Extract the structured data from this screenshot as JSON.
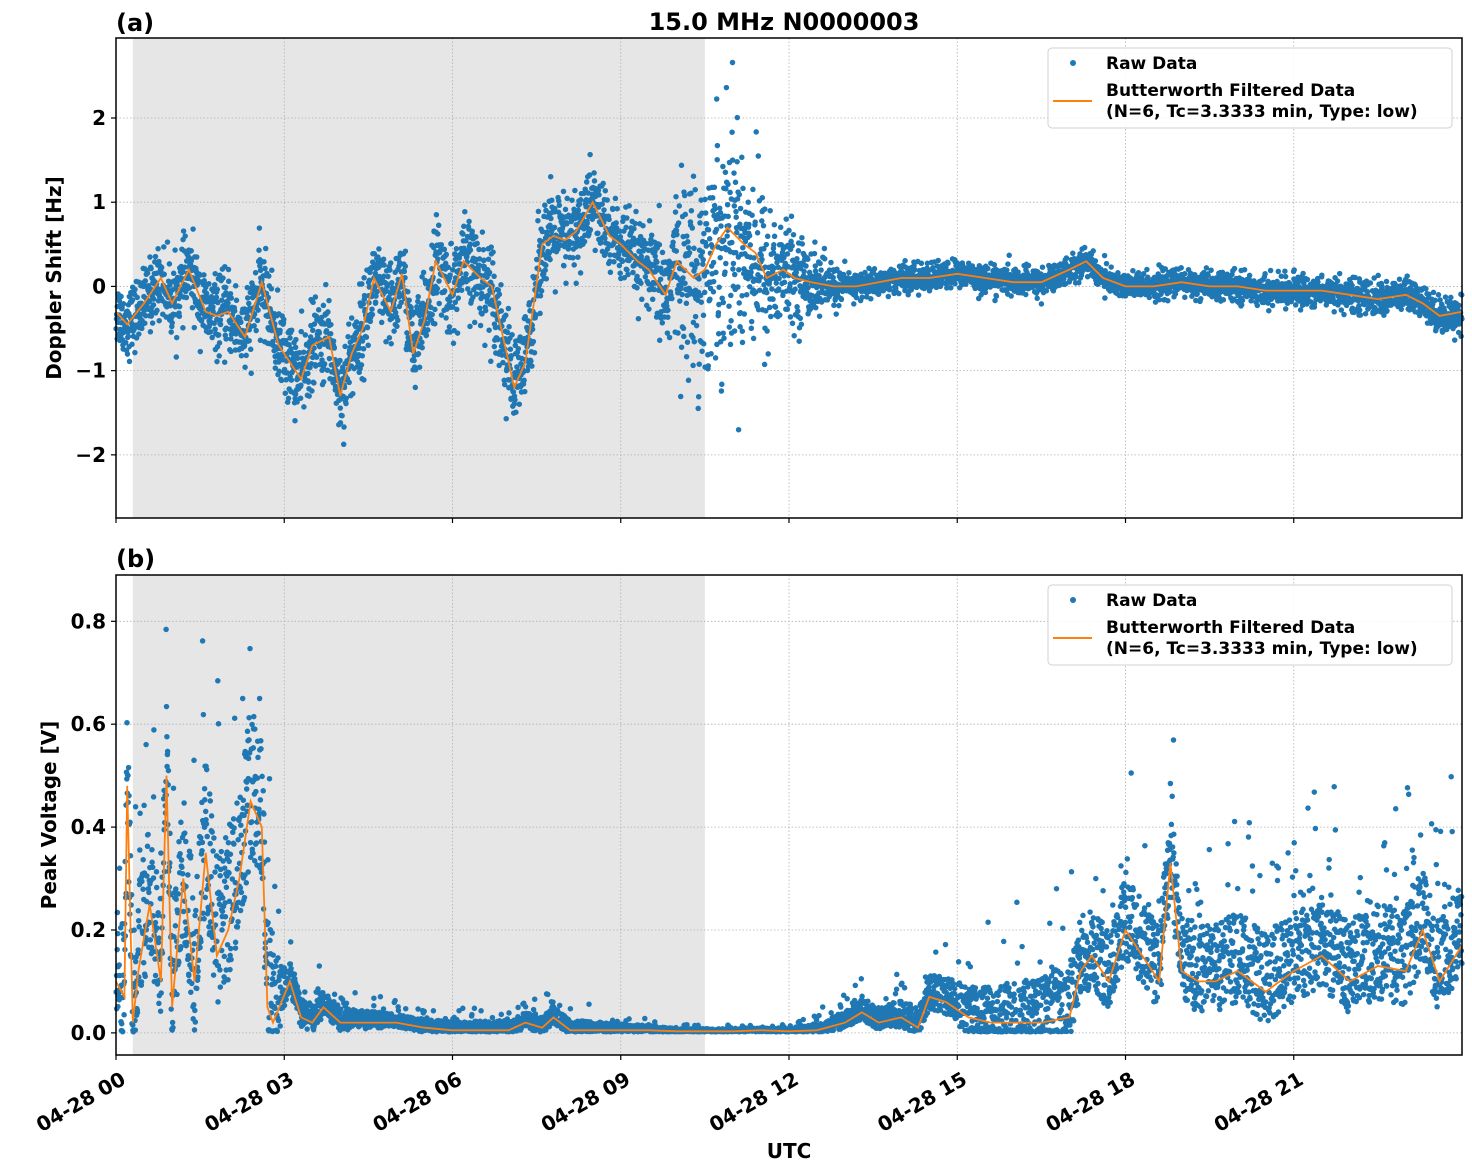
{
  "figure_title": "15.0 MHz N0000003",
  "colors": {
    "raw": "#1f77b4",
    "filtered": "#ff7f0e",
    "shade": "#e6e6e6",
    "grid": "#b0b0b0"
  },
  "legend": {
    "raw_label": "Raw Data",
    "filtered_label_line1": "Butterworth Filtered Data",
    "filtered_label_line2": "(N=6, Tc=3.3333 min, Type: low)"
  },
  "chart_data": [
    {
      "type": "scatter",
      "panel_label": "(a)",
      "title": "15.0 MHz N0000003",
      "xlabel": "",
      "ylabel": "Doppler Shift [Hz]",
      "xlim_hours": [
        0,
        24
      ],
      "ylim": [
        -2.75,
        2.95
      ],
      "yticks": [
        -2,
        -1,
        0,
        1,
        2
      ],
      "ytick_labels": [
        "−2",
        "−1",
        "0",
        "1",
        "2"
      ],
      "grid": true,
      "legend_position": "top-right",
      "shaded_interval_hours": [
        0.3,
        10.5
      ],
      "series": [
        {
          "name": "Butterworth Filtered Data (N=6, Tc=3.3333 min, Type: low)",
          "kind": "line",
          "x_hours": [
            0,
            0.2,
            0.5,
            0.8,
            1.0,
            1.3,
            1.6,
            1.8,
            2.0,
            2.3,
            2.6,
            2.9,
            3.1,
            3.3,
            3.5,
            3.8,
            4.0,
            4.2,
            4.4,
            4.6,
            4.9,
            5.1,
            5.3,
            5.5,
            5.7,
            6.0,
            6.2,
            6.5,
            6.7,
            6.9,
            7.1,
            7.3,
            7.6,
            7.8,
            8.0,
            8.2,
            8.5,
            8.8,
            9.0,
            9.3,
            9.5,
            9.8,
            10.0,
            10.3,
            10.5,
            10.7,
            10.9,
            11.2,
            11.4,
            11.6,
            11.9,
            12.1,
            12.4,
            12.8,
            13.2,
            13.6,
            14.0,
            14.5,
            15.0,
            15.5,
            16.0,
            16.5,
            17.0,
            17.3,
            17.6,
            18.0,
            18.5,
            19.0,
            19.5,
            20.0,
            20.5,
            21.0,
            21.5,
            22.0,
            22.5,
            23.0,
            23.3,
            23.6,
            24.0
          ],
          "y": [
            -0.3,
            -0.45,
            -0.2,
            0.1,
            -0.2,
            0.2,
            -0.3,
            -0.35,
            -0.3,
            -0.6,
            0.05,
            -0.7,
            -0.9,
            -1.1,
            -0.7,
            -0.6,
            -1.3,
            -0.8,
            -0.5,
            0.1,
            -0.3,
            0.15,
            -0.8,
            -0.4,
            0.3,
            -0.1,
            0.3,
            0.1,
            0.0,
            -0.6,
            -1.2,
            -0.9,
            0.5,
            0.6,
            0.55,
            0.65,
            1.0,
            0.6,
            0.5,
            0.3,
            0.2,
            -0.1,
            0.3,
            0.1,
            0.2,
            0.5,
            0.7,
            0.5,
            0.4,
            0.1,
            0.2,
            0.1,
            0.05,
            0.0,
            0.0,
            0.05,
            0.1,
            0.1,
            0.15,
            0.1,
            0.05,
            0.05,
            0.2,
            0.3,
            0.1,
            0.0,
            0.0,
            0.05,
            0.0,
            0.0,
            -0.05,
            -0.05,
            -0.05,
            -0.1,
            -0.15,
            -0.1,
            -0.2,
            -0.35,
            -0.3
          ]
        },
        {
          "name": "Raw Data",
          "kind": "scatter",
          "spread_hz_x_hours": [
            0,
            3,
            7.5,
            9.5,
            10.5,
            11,
            11.5,
            12,
            12.5,
            13,
            20,
            24
          ],
          "spread_hz": [
            0.35,
            0.45,
            0.5,
            0.4,
            1.2,
            1.3,
            0.9,
            0.5,
            0.35,
            0.15,
            0.15,
            0.2
          ]
        }
      ]
    },
    {
      "type": "scatter",
      "panel_label": "(b)",
      "title": "",
      "xlabel": "UTC",
      "ylabel": "Peak Voltage [V]",
      "xlim_hours": [
        0,
        24
      ],
      "ylim": [
        -0.043,
        0.89
      ],
      "yticks": [
        0.0,
        0.2,
        0.4,
        0.6,
        0.8
      ],
      "ytick_labels": [
        "0.0",
        "0.2",
        "0.4",
        "0.6",
        "0.8"
      ],
      "xticks_hours": [
        0,
        3,
        6,
        9,
        12,
        15,
        18,
        21
      ],
      "xtick_labels": [
        "04-28 00",
        "04-28 03",
        "04-28 06",
        "04-28 09",
        "04-28 12",
        "04-28 15",
        "04-28 18",
        "04-28 21"
      ],
      "grid": true,
      "legend_position": "top-right",
      "shaded_interval_hours": [
        0.3,
        10.5
      ],
      "series": [
        {
          "name": "Butterworth Filtered Data (N=6, Tc=3.3333 min, Type: low)",
          "kind": "line",
          "x_hours": [
            0,
            0.15,
            0.2,
            0.3,
            0.4,
            0.6,
            0.8,
            0.9,
            1.0,
            1.2,
            1.4,
            1.6,
            1.8,
            2.0,
            2.2,
            2.4,
            2.6,
            2.7,
            2.8,
            3.1,
            3.3,
            3.5,
            3.7,
            4.0,
            4.5,
            5.0,
            5.5,
            6.0,
            6.5,
            7.0,
            7.3,
            7.6,
            7.8,
            8.1,
            8.5,
            9.0,
            9.5,
            10.0,
            10.5,
            11.0,
            11.5,
            12.0,
            12.5,
            13.0,
            13.3,
            13.6,
            14.0,
            14.3,
            14.5,
            14.8,
            15.2,
            15.6,
            16.0,
            16.5,
            17.0,
            17.2,
            17.4,
            17.7,
            18.0,
            18.3,
            18.6,
            18.8,
            19.0,
            19.3,
            19.6,
            20.0,
            20.5,
            21.0,
            21.5,
            22.0,
            22.5,
            23.0,
            23.3,
            23.6,
            24.0
          ],
          "y": [
            0.1,
            0.07,
            0.48,
            0.02,
            0.12,
            0.25,
            0.1,
            0.5,
            0.05,
            0.3,
            0.1,
            0.35,
            0.15,
            0.2,
            0.3,
            0.45,
            0.4,
            0.05,
            0.02,
            0.1,
            0.03,
            0.02,
            0.05,
            0.02,
            0.02,
            0.02,
            0.01,
            0.005,
            0.005,
            0.005,
            0.02,
            0.01,
            0.03,
            0.005,
            0.005,
            0.005,
            0.005,
            0.003,
            0.003,
            0.003,
            0.005,
            0.003,
            0.005,
            0.02,
            0.04,
            0.02,
            0.03,
            0.01,
            0.07,
            0.06,
            0.03,
            0.02,
            0.02,
            0.02,
            0.03,
            0.12,
            0.15,
            0.1,
            0.2,
            0.15,
            0.1,
            0.33,
            0.12,
            0.1,
            0.1,
            0.12,
            0.08,
            0.12,
            0.15,
            0.1,
            0.13,
            0.12,
            0.2,
            0.1,
            0.17
          ]
        },
        {
          "name": "Raw Data",
          "kind": "scatter",
          "spread_v_x_hours": [
            0,
            2.7,
            3,
            5,
            8,
            10,
            12,
            13,
            14.5,
            17,
            24
          ],
          "spread_v": [
            0.15,
            0.2,
            0.04,
            0.015,
            0.02,
            0.005,
            0.004,
            0.02,
            0.04,
            0.1,
            0.12
          ]
        }
      ]
    }
  ]
}
